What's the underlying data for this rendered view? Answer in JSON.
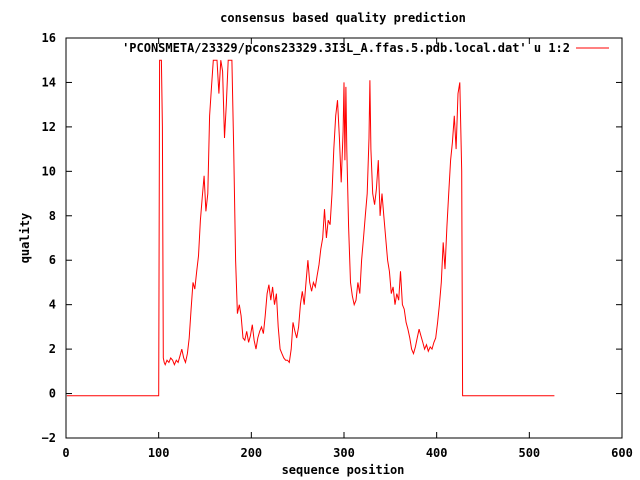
{
  "chart_data": {
    "type": "line",
    "title": "consensus based quality prediction",
    "xlabel": "sequence position",
    "ylabel": "quality",
    "xlim": [
      0,
      600
    ],
    "ylim": [
      -2,
      16
    ],
    "xticks": [
      0,
      100,
      200,
      300,
      400,
      500,
      600
    ],
    "yticks": [
      -2,
      0,
      2,
      4,
      6,
      8,
      10,
      12,
      14,
      16
    ],
    "xtick_labels": [
      "0",
      "100",
      "200",
      "300",
      "400",
      "500",
      "600"
    ],
    "ytick_labels": [
      "−2",
      "0",
      "2",
      "4",
      "6",
      "8",
      "10",
      "12",
      "14",
      "16"
    ],
    "grid": false,
    "legend_position": "top-right",
    "series": [
      {
        "name": "'PCONSMETA/23329/pcons23329.3I3L_A.ffas.5.pdb.local.dat' u 1:2",
        "color": "#ff0000",
        "points": [
          [
            1,
            -0.1
          ],
          [
            100,
            -0.1
          ],
          [
            101,
            15
          ],
          [
            103,
            15
          ],
          [
            104,
            12
          ],
          [
            105,
            1.6
          ],
          [
            106,
            1.4
          ],
          [
            107,
            1.3
          ],
          [
            109,
            1.5
          ],
          [
            111,
            1.4
          ],
          [
            113,
            1.6
          ],
          [
            115,
            1.5
          ],
          [
            117,
            1.3
          ],
          [
            119,
            1.5
          ],
          [
            121,
            1.4
          ],
          [
            123,
            1.7
          ],
          [
            125,
            2.0
          ],
          [
            127,
            1.6
          ],
          [
            129,
            1.4
          ],
          [
            131,
            1.8
          ],
          [
            133,
            2.5
          ],
          [
            135,
            3.8
          ],
          [
            137,
            5.0
          ],
          [
            139,
            4.7
          ],
          [
            141,
            5.5
          ],
          [
            143,
            6.2
          ],
          [
            145,
            7.8
          ],
          [
            147,
            8.8
          ],
          [
            149,
            9.8
          ],
          [
            151,
            8.2
          ],
          [
            153,
            9.0
          ],
          [
            155,
            12.5
          ],
          [
            157,
            13.8
          ],
          [
            159,
            15
          ],
          [
            163,
            15
          ],
          [
            165,
            13.5
          ],
          [
            167,
            15
          ],
          [
            169,
            14.5
          ],
          [
            171,
            11.5
          ],
          [
            173,
            13.0
          ],
          [
            175,
            15
          ],
          [
            179,
            15
          ],
          [
            181,
            11.0
          ],
          [
            183,
            6.0
          ],
          [
            185,
            3.6
          ],
          [
            187,
            4.0
          ],
          [
            189,
            3.5
          ],
          [
            191,
            2.5
          ],
          [
            193,
            2.4
          ],
          [
            195,
            2.8
          ],
          [
            197,
            2.3
          ],
          [
            199,
            2.6
          ],
          [
            201,
            3.1
          ],
          [
            203,
            2.4
          ],
          [
            205,
            2.0
          ],
          [
            207,
            2.5
          ],
          [
            209,
            2.8
          ],
          [
            211,
            3.0
          ],
          [
            213,
            2.7
          ],
          [
            215,
            3.5
          ],
          [
            217,
            4.5
          ],
          [
            219,
            4.9
          ],
          [
            221,
            4.2
          ],
          [
            223,
            4.8
          ],
          [
            225,
            4.0
          ],
          [
            227,
            4.5
          ],
          [
            229,
            3.0
          ],
          [
            231,
            2.0
          ],
          [
            233,
            1.8
          ],
          [
            235,
            1.6
          ],
          [
            237,
            1.5
          ],
          [
            239,
            1.5
          ],
          [
            241,
            1.4
          ],
          [
            243,
            2.0
          ],
          [
            245,
            3.2
          ],
          [
            247,
            2.8
          ],
          [
            249,
            2.5
          ],
          [
            251,
            3.0
          ],
          [
            253,
            4.0
          ],
          [
            255,
            4.6
          ],
          [
            257,
            4.0
          ],
          [
            259,
            5.0
          ],
          [
            261,
            6.0
          ],
          [
            263,
            5.0
          ],
          [
            265,
            4.6
          ],
          [
            267,
            5.0
          ],
          [
            269,
            4.8
          ],
          [
            271,
            5.3
          ],
          [
            273,
            5.8
          ],
          [
            275,
            6.5
          ],
          [
            277,
            7.0
          ],
          [
            279,
            8.3
          ],
          [
            281,
            7.0
          ],
          [
            283,
            7.8
          ],
          [
            285,
            7.6
          ],
          [
            287,
            9.0
          ],
          [
            289,
            11.0
          ],
          [
            291,
            12.5
          ],
          [
            293,
            13.2
          ],
          [
            295,
            11.5
          ],
          [
            297,
            9.5
          ],
          [
            299,
            11.8
          ],
          [
            300,
            14.0
          ],
          [
            301,
            10.5
          ],
          [
            302,
            13.8
          ],
          [
            303,
            11.0
          ],
          [
            305,
            7.5
          ],
          [
            307,
            5.0
          ],
          [
            309,
            4.4
          ],
          [
            311,
            4.0
          ],
          [
            313,
            4.2
          ],
          [
            315,
            5.0
          ],
          [
            317,
            4.5
          ],
          [
            319,
            6.0
          ],
          [
            321,
            7.0
          ],
          [
            323,
            8.0
          ],
          [
            325,
            9.0
          ],
          [
            327,
            11.5
          ],
          [
            328,
            14.1
          ],
          [
            329,
            11.0
          ],
          [
            331,
            9.0
          ],
          [
            333,
            8.5
          ],
          [
            335,
            9.2
          ],
          [
            337,
            10.5
          ],
          [
            339,
            8.0
          ],
          [
            341,
            9.0
          ],
          [
            343,
            8.0
          ],
          [
            345,
            7.0
          ],
          [
            347,
            6.0
          ],
          [
            349,
            5.5
          ],
          [
            351,
            4.5
          ],
          [
            353,
            4.8
          ],
          [
            355,
            4.0
          ],
          [
            357,
            4.5
          ],
          [
            359,
            4.2
          ],
          [
            361,
            5.5
          ],
          [
            363,
            4.0
          ],
          [
            365,
            3.8
          ],
          [
            367,
            3.2
          ],
          [
            369,
            2.9
          ],
          [
            371,
            2.5
          ],
          [
            373,
            2.0
          ],
          [
            375,
            1.8
          ],
          [
            377,
            2.1
          ],
          [
            379,
            2.5
          ],
          [
            381,
            2.9
          ],
          [
            383,
            2.6
          ],
          [
            385,
            2.3
          ],
          [
            387,
            2.0
          ],
          [
            389,
            2.2
          ],
          [
            391,
            1.9
          ],
          [
            393,
            2.1
          ],
          [
            395,
            2.0
          ],
          [
            397,
            2.3
          ],
          [
            399,
            2.5
          ],
          [
            401,
            3.2
          ],
          [
            403,
            4.0
          ],
          [
            405,
            5.0
          ],
          [
            407,
            6.8
          ],
          [
            409,
            5.6
          ],
          [
            411,
            7.5
          ],
          [
            413,
            9.0
          ],
          [
            415,
            10.5
          ],
          [
            417,
            11.3
          ],
          [
            419,
            12.5
          ],
          [
            421,
            11.0
          ],
          [
            423,
            13.5
          ],
          [
            425,
            14.0
          ],
          [
            427,
            10.0
          ],
          [
            428,
            -0.1
          ],
          [
            527,
            -0.1
          ]
        ]
      }
    ]
  }
}
